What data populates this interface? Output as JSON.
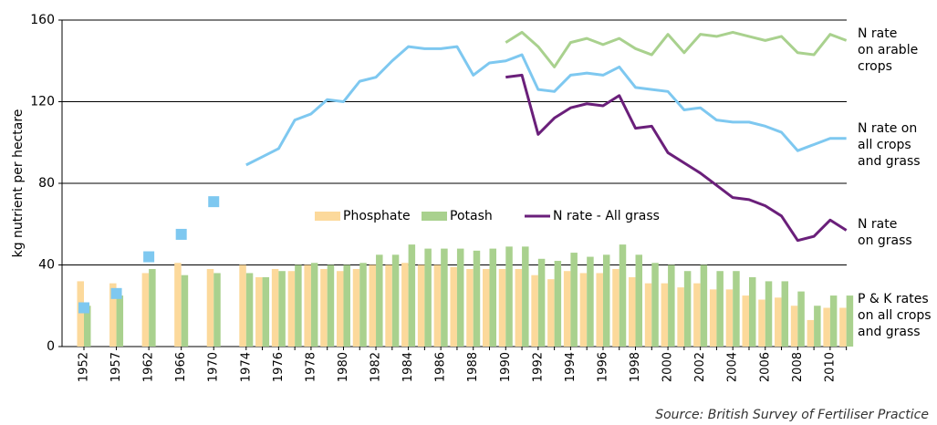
{
  "chart_data": {
    "type": "combo",
    "y_axis_label": "kg nutrient per hectare",
    "source": "Source: British Survey of Fertiliser Practice",
    "ylim": [
      0,
      160
    ],
    "yticks": [
      0,
      40,
      80,
      120,
      160
    ],
    "grid": true,
    "categories": [
      "1952",
      "1957",
      "1962",
      "1966",
      "1970",
      "1974",
      null,
      "1976",
      null,
      "1978",
      null,
      "1980",
      null,
      "1982",
      null,
      "1984",
      null,
      "1986",
      null,
      "1988",
      null,
      "1990",
      null,
      "1992",
      null,
      "1994",
      null,
      "1996",
      null,
      "1998",
      null,
      "2000",
      null,
      "2002",
      null,
      "2004",
      null,
      "2006",
      null,
      "2008",
      null,
      "2010",
      null
    ],
    "series": [
      {
        "name": "Phosphate",
        "kind": "bar",
        "color": "#fcd99b",
        "values": [
          32,
          31,
          36,
          41,
          38,
          40,
          34,
          38,
          37,
          40,
          38,
          37,
          38,
          40,
          40,
          41,
          40,
          40,
          39,
          38,
          38,
          38,
          38,
          35,
          33,
          37,
          36,
          36,
          38,
          34,
          31,
          31,
          29,
          31,
          28,
          28,
          25,
          23,
          24,
          20,
          13,
          19,
          19
        ]
      },
      {
        "name": "Potash",
        "kind": "bar",
        "color": "#a9d18e",
        "values": [
          20,
          25,
          38,
          35,
          36,
          36,
          34,
          37,
          40,
          41,
          40,
          40,
          41,
          45,
          45,
          50,
          48,
          48,
          48,
          47,
          48,
          49,
          49,
          43,
          42,
          46,
          44,
          45,
          50,
          45,
          41,
          40,
          37,
          40,
          37,
          37,
          34,
          32,
          32,
          27,
          20,
          25,
          25
        ]
      },
      {
        "name": "N rate - All grass",
        "kind": "line",
        "color": "#6a1f7a",
        "values": [
          null,
          null,
          null,
          null,
          null,
          null,
          null,
          null,
          null,
          null,
          null,
          null,
          null,
          null,
          null,
          null,
          null,
          null,
          null,
          null,
          null,
          132,
          133,
          104,
          112,
          117,
          119,
          118,
          123,
          107,
          108,
          95,
          90,
          85,
          79,
          73,
          72,
          69,
          64,
          52,
          54,
          62,
          57
        ]
      },
      {
        "kind": "line",
        "color": "#a9d18e",
        "values": [
          null,
          null,
          null,
          null,
          null,
          null,
          null,
          null,
          null,
          null,
          null,
          null,
          null,
          null,
          null,
          null,
          null,
          null,
          null,
          null,
          null,
          149,
          154,
          147,
          137,
          149,
          151,
          148,
          151,
          146,
          143,
          153,
          144,
          153,
          152,
          154,
          152,
          150,
          152,
          144,
          143,
          153,
          150
        ]
      },
      {
        "kind": "line",
        "color": "#7ec8f0",
        "values": [
          null,
          null,
          null,
          null,
          null,
          89,
          93,
          97,
          111,
          114,
          121,
          120,
          130,
          132,
          140,
          147,
          146,
          146,
          147,
          133,
          139,
          140,
          143,
          126,
          125,
          133,
          134,
          133,
          137,
          127,
          126,
          125,
          116,
          117,
          111,
          110,
          110,
          108,
          105,
          96,
          99,
          102,
          102
        ]
      },
      {
        "kind": "marker",
        "color": "#7ec8f0",
        "values": [
          19,
          26,
          44,
          55,
          71,
          null,
          null,
          null,
          null,
          null,
          null,
          null,
          null,
          null,
          null,
          null,
          null,
          null,
          null,
          null,
          null,
          null,
          null,
          null,
          null,
          null,
          null,
          null,
          null,
          null,
          null,
          null,
          null,
          null,
          null,
          null,
          null,
          null,
          null,
          null,
          null,
          null,
          null
        ]
      }
    ],
    "annotations": [
      [
        "N rate",
        "on arable",
        "crops"
      ],
      [
        "N rate on",
        "all crops",
        "and grass"
      ],
      [
        "N rate",
        "on grass"
      ],
      [
        "P & K rates",
        "on all crops",
        "and grass"
      ]
    ]
  }
}
